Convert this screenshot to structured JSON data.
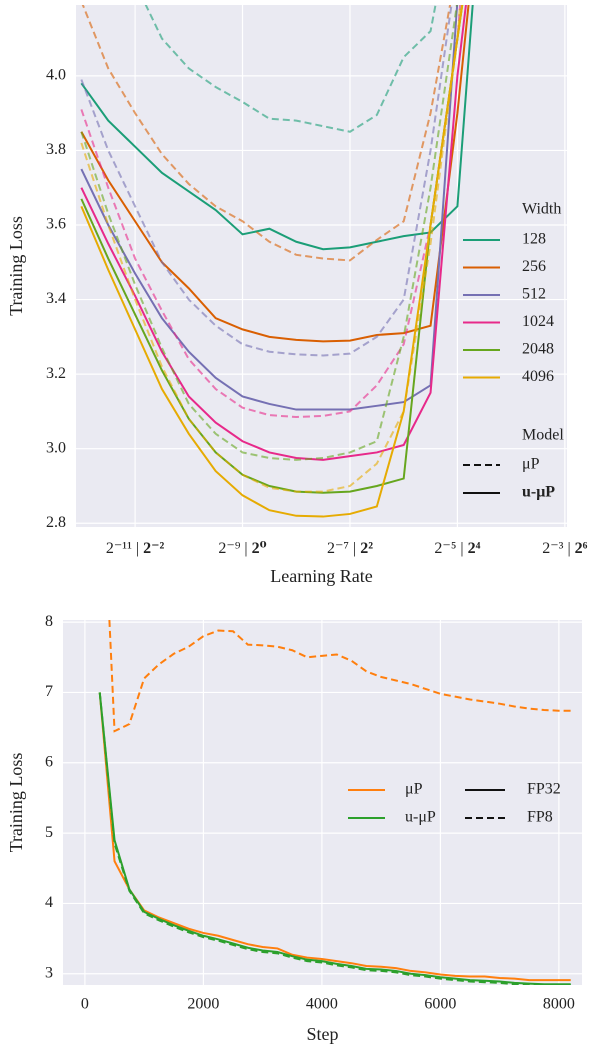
{
  "chart_data": [
    {
      "type": "line",
      "ylabel": "Training Loss",
      "xlabel": "Learning Rate",
      "x": [
        -12,
        -11.5,
        -11,
        -10.5,
        -10,
        -9.5,
        -9,
        -8.5,
        -8,
        -7.5,
        -7,
        -6.5,
        -6,
        -5.5,
        -5,
        -4.5,
        -4
      ],
      "xlim": [
        -12.1,
        -2.96
      ],
      "ylim": [
        2.79,
        4.19
      ],
      "xticks": [
        {
          "value": -11,
          "label": "2⁻¹¹ | 2⁻²"
        },
        {
          "value": -9,
          "label": "2⁻⁹ | 2⁰"
        },
        {
          "value": -7,
          "label": "2⁻⁷ | 2²"
        },
        {
          "value": -5,
          "label": "2⁻⁵ | 2⁴"
        },
        {
          "value": -3,
          "label": "2⁻³ | 2⁶"
        }
      ],
      "xtick_second_bold": true,
      "yticks": [
        2.8,
        {
          "value": 3,
          "label": "3.0"
        },
        3.2,
        3.4,
        3.6,
        3.8,
        {
          "value": 4,
          "label": "4.0"
        }
      ],
      "grid": true,
      "legend_title": "Width",
      "style_title": "Model",
      "groups": [
        {
          "name": "128",
          "color": "#1b9e77",
          "values": [
            [
              4.6,
              4.4,
              4.25,
              4.1,
              4.02,
              3.97,
              3.93,
              3.885,
              3.88,
              3.865,
              3.85,
              3.895,
              4.05,
              4.12,
              4.5,
              5,
              5.5
            ],
            [
              3.98,
              3.88,
              3.81,
              3.74,
              3.69,
              3.64,
              3.575,
              3.59,
              3.555,
              3.535,
              3.54,
              3.555,
              3.57,
              3.58,
              3.65,
              4.6,
              5
            ]
          ]
        },
        {
          "name": "256",
          "color": "#d95f02",
          "values": [
            [
              4.2,
              4.02,
              3.9,
              3.79,
              3.71,
              3.65,
              3.61,
              3.555,
              3.52,
              3.51,
              3.505,
              3.56,
              3.61,
              3.9,
              4.3,
              5,
              5.5
            ],
            [
              3.85,
              3.72,
              3.61,
              3.5,
              3.43,
              3.35,
              3.32,
              3.3,
              3.292,
              3.288,
              3.29,
              3.305,
              3.31,
              3.33,
              3.9,
              4.6,
              5
            ]
          ]
        },
        {
          "name": "512",
          "color": "#7570b3",
          "values": [
            [
              3.99,
              3.8,
              3.65,
              3.5,
              3.4,
              3.33,
              3.28,
              3.26,
              3.253,
              3.25,
              3.255,
              3.3,
              3.4,
              3.8,
              4.3,
              5,
              5.5
            ],
            [
              3.75,
              3.6,
              3.47,
              3.35,
              3.26,
              3.19,
              3.14,
              3.12,
              3.105,
              3.105,
              3.105,
              3.115,
              3.125,
              3.17,
              4.2,
              4.8,
              5
            ]
          ]
        },
        {
          "name": "1024",
          "color": "#e7298a",
          "values": [
            [
              3.91,
              3.7,
              3.51,
              3.37,
              3.24,
              3.16,
              3.11,
              3.09,
              3.085,
              3.088,
              3.1,
              3.17,
              3.28,
              3.6,
              4.1,
              5,
              5.5
            ],
            [
              3.7,
              3.55,
              3.41,
              3.26,
              3.14,
              3.07,
              3.02,
              2.99,
              2.975,
              2.97,
              2.98,
              2.99,
              3.01,
              3.15,
              4.0,
              4.6,
              5
            ]
          ]
        },
        {
          "name": "2048",
          "color": "#66a61e",
          "values": [
            [
              3.85,
              3.63,
              3.44,
              3.27,
              3.12,
              3.04,
              2.99,
              2.975,
              2.97,
              2.975,
              2.99,
              3.02,
              3.3,
              3.7,
              4.2,
              5,
              5.5
            ],
            [
              3.67,
              3.51,
              3.36,
              3.21,
              3.08,
              2.99,
              2.93,
              2.9,
              2.885,
              2.882,
              2.885,
              2.9,
              2.92,
              3.6,
              4.1,
              4.6,
              5
            ]
          ]
        },
        {
          "name": "4096",
          "color": "#e6ab02",
          "values": [
            [
              3.82,
              3.6,
              3.4,
              3.22,
              3.08,
              2.99,
              2.93,
              2.895,
              2.885,
              2.885,
              2.9,
              2.96,
              3.1,
              3.55,
              4.1,
              5,
              5.5
            ],
            [
              3.65,
              3.48,
              3.32,
              3.16,
              3.04,
              2.94,
              2.875,
              2.835,
              2.82,
              2.818,
              2.825,
              2.845,
              3.1,
              3.6,
              4.1,
              4.6,
              5
            ]
          ]
        }
      ],
      "styles": [
        {
          "name": "μP",
          "dash": true,
          "alpha": 0.6,
          "bold": false
        },
        {
          "name": "u-μP",
          "dash": false,
          "alpha": 1,
          "bold": true
        }
      ]
    },
    {
      "type": "line",
      "ylabel": "Training Loss",
      "xlabel": "Step",
      "x": [
        250,
        500,
        750,
        1000,
        1250,
        1500,
        1750,
        2000,
        2250,
        2500,
        2750,
        3000,
        3250,
        3500,
        3750,
        4000,
        4250,
        4500,
        4750,
        5000,
        5250,
        5500,
        5750,
        6000,
        6250,
        6500,
        6750,
        7000,
        7250,
        7500,
        7750,
        8000,
        8200
      ],
      "xlim": [
        -370,
        8390
      ],
      "ylim": [
        2.84,
        8.03
      ],
      "xticks": [
        0,
        2000,
        4000,
        6000,
        8000
      ],
      "yticks": [
        3,
        4,
        5,
        6,
        7,
        8
      ],
      "grid": true,
      "groups": [
        {
          "name": "μP",
          "color": "#ff7f0e",
          "values": [
            [
              7.0,
              4.6,
              4.2,
              3.9,
              3.8,
              3.72,
              3.64,
              3.58,
              3.54,
              3.48,
              3.42,
              3.38,
              3.36,
              3.27,
              3.23,
              3.21,
              3.18,
              3.15,
              3.11,
              3.1,
              3.08,
              3.04,
              3.02,
              2.99,
              2.97,
              2.96,
              2.96,
              2.94,
              2.93,
              2.91,
              2.91,
              2.91,
              2.91
            ],
            [
              11,
              6.45,
              6.55,
              7.2,
              7.4,
              7.55,
              7.65,
              7.8,
              7.88,
              7.87,
              7.68,
              7.67,
              7.65,
              7.6,
              7.5,
              7.52,
              7.54,
              7.45,
              7.3,
              7.22,
              7.17,
              7.12,
              7.05,
              6.98,
              6.94,
              6.9,
              6.87,
              6.84,
              6.8,
              6.77,
              6.75,
              6.74,
              6.74
            ]
          ]
        },
        {
          "name": "u-μP",
          "color": "#2ca02c",
          "values": [
            [
              7.0,
              4.9,
              4.2,
              3.88,
              3.78,
              3.69,
              3.61,
              3.54,
              3.49,
              3.43,
              3.37,
              3.33,
              3.31,
              3.25,
              3.2,
              3.18,
              3.14,
              3.11,
              3.07,
              3.06,
              3.04,
              3.0,
              2.98,
              2.95,
              2.93,
              2.91,
              2.9,
              2.89,
              2.87,
              2.86,
              2.85,
              2.85,
              2.85
            ],
            [
              7.0,
              4.85,
              4.18,
              3.86,
              3.76,
              3.67,
              3.59,
              3.52,
              3.47,
              3.41,
              3.35,
              3.31,
              3.29,
              3.23,
              3.18,
              3.16,
              3.12,
              3.09,
              3.05,
              3.04,
              3.02,
              2.98,
              2.96,
              2.93,
              2.91,
              2.89,
              2.88,
              2.87,
              2.85,
              2.84,
              2.84,
              2.84,
              2.84
            ]
          ]
        }
      ],
      "styles": [
        {
          "name": "FP32",
          "dash": false,
          "alpha": 1,
          "bold": false
        },
        {
          "name": "FP8",
          "dash": true,
          "alpha": 1,
          "bold": false
        }
      ]
    }
  ]
}
